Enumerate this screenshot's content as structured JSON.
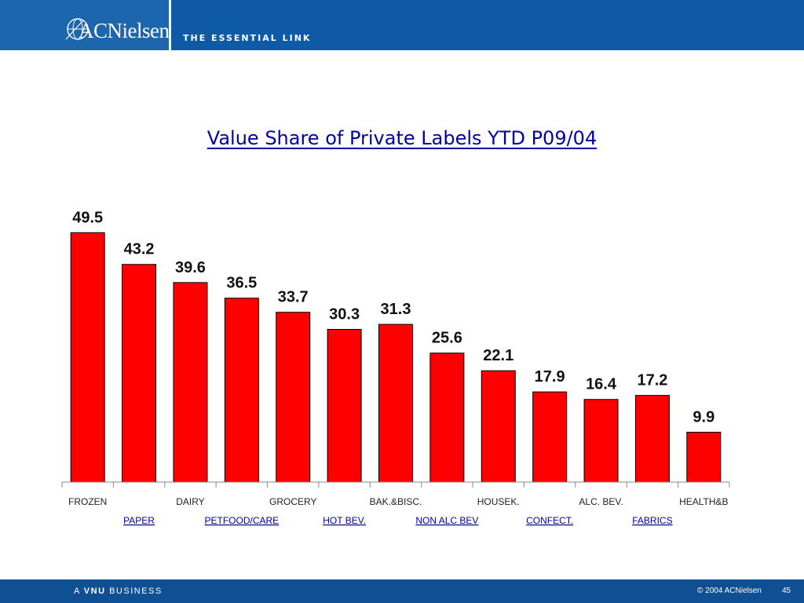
{
  "header": {
    "logo_text": "ACNielsen",
    "tagline": "THE ESSENTIAL LINK"
  },
  "colors": {
    "header_bg": "#0f5aa6",
    "bar_fill": "#ff0000",
    "title_text": "#0000a8",
    "category_label_lower": "#000099"
  },
  "chart_data": {
    "type": "bar",
    "title": "Value Share of Private Labels YTD P09/04",
    "categories": [
      "FROZEN",
      "PAPER",
      "DAIRY",
      "PETFOOD/CARE",
      "GROCERY",
      "HOT BEV.",
      "BAK.&BISC.",
      "NON ALC BEV",
      "HOUSEK.",
      "CONFECT.",
      "ALC. BEV.",
      "FABRICS",
      "HEALTH&B"
    ],
    "values": [
      49.5,
      43.2,
      39.6,
      36.5,
      33.7,
      30.3,
      31.3,
      25.6,
      22.1,
      17.9,
      16.4,
      17.2,
      9.9
    ],
    "ylim": [
      0,
      55
    ],
    "xlabel": "",
    "ylabel": "",
    "grid": false,
    "legend": "none"
  },
  "footer": {
    "left_prefix": "A",
    "left_brand": "VNU",
    "left_suffix": "BUSINESS",
    "copyright": "© 2004 ACNielsen",
    "page_number": "45"
  }
}
